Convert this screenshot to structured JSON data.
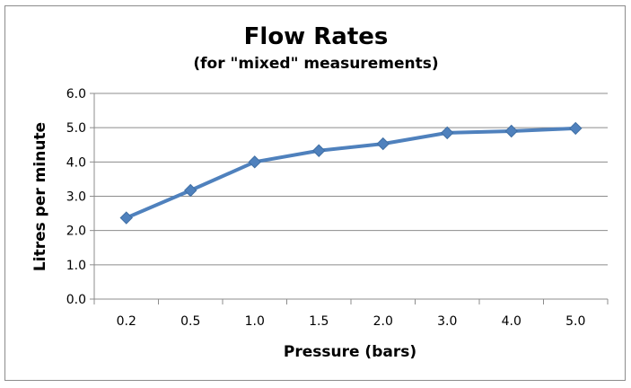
{
  "chart_data": {
    "type": "line",
    "title": "Flow Rates",
    "subtitle": "(for \"mixed\" measurements)",
    "xlabel": "Pressure (bars)",
    "ylabel": "Litres per minute",
    "categories": [
      "0.2",
      "0.5",
      "1.0",
      "1.5",
      "2.0",
      "3.0",
      "4.0",
      "5.0"
    ],
    "y_ticks": [
      "0.0",
      "1.0",
      "2.0",
      "3.0",
      "4.0",
      "5.0",
      "6.0"
    ],
    "ylim": [
      0,
      6
    ],
    "grid": true,
    "legend": "none",
    "series": [
      {
        "values": [
          2.37,
          3.17,
          4.0,
          4.33,
          4.53,
          4.85,
          4.9,
          4.98
        ],
        "color": "#4F81BD",
        "marker": "diamond"
      }
    ]
  }
}
